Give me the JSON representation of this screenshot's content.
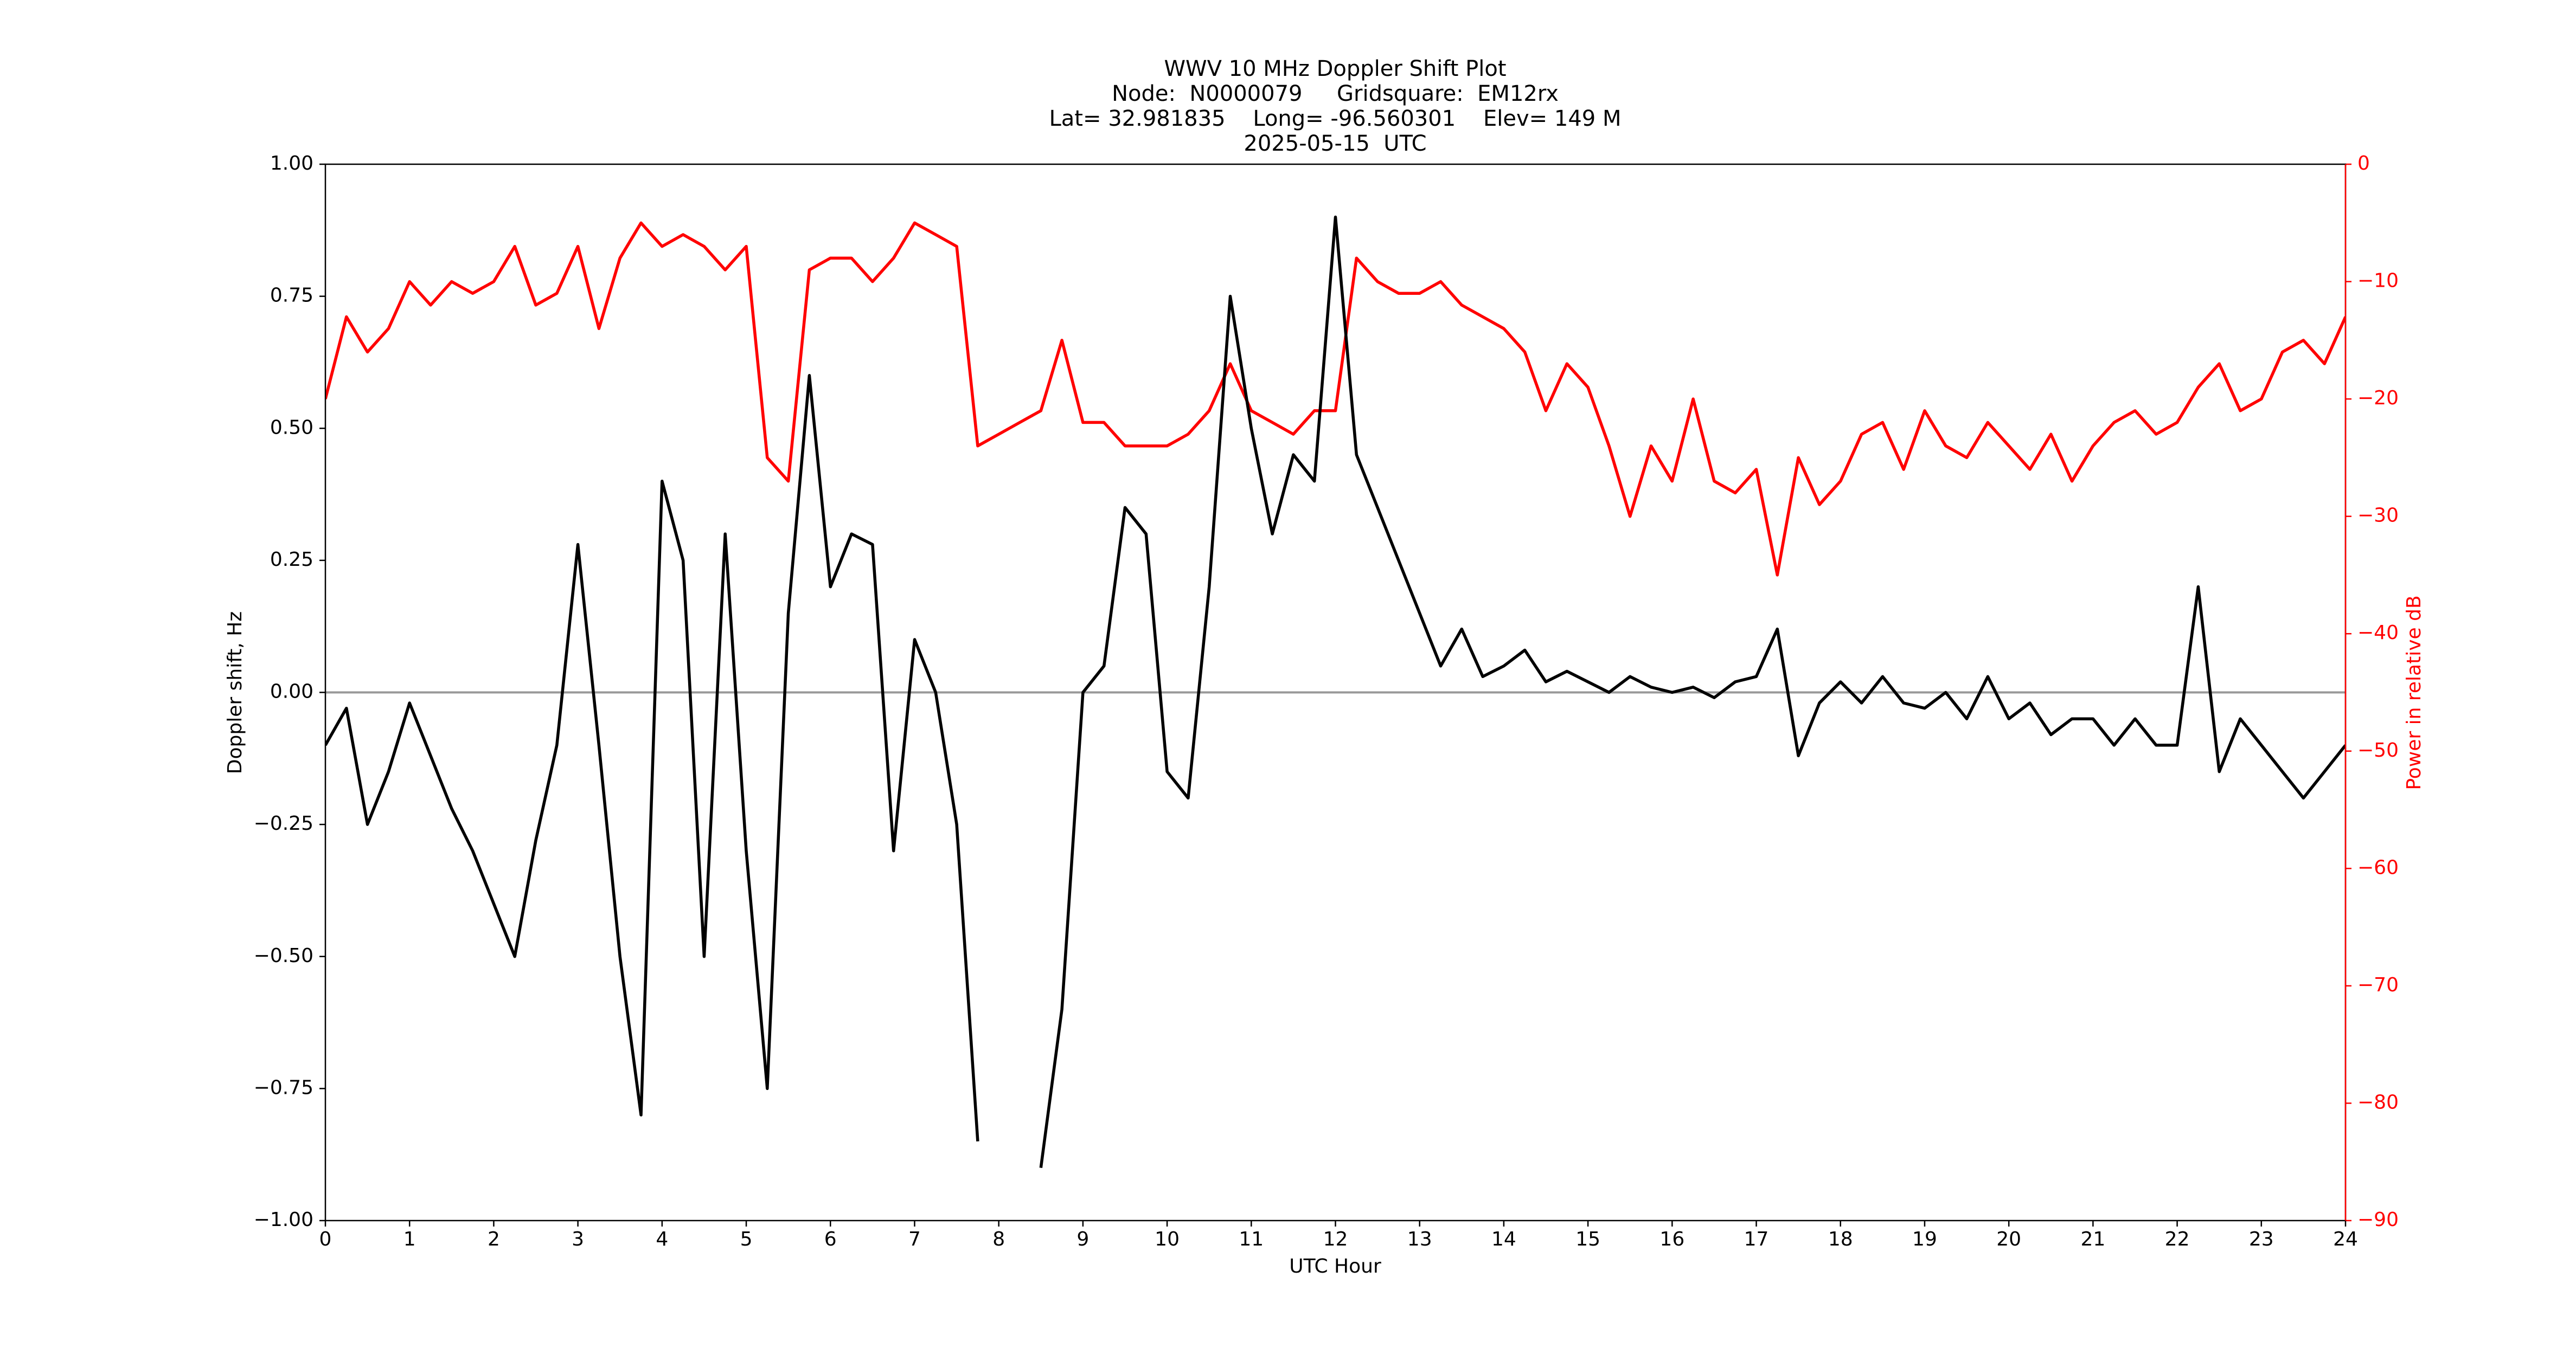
{
  "chart_data": {
    "type": "line",
    "title": [
      "WWV 10 MHz Doppler Shift Plot",
      "Node:  N0000079     Gridsquare:  EM12rx",
      "Lat= 32.981835    Long= -96.560301    Elev= 149 M",
      "2025-05-15  UTC"
    ],
    "xlabel": "UTC Hour",
    "ylabel": "Doppler shift, Hz",
    "y2label": "Power in relative dB",
    "x": [
      0,
      0.25,
      0.5,
      0.75,
      1,
      1.25,
      1.5,
      1.75,
      2,
      2.25,
      2.5,
      2.75,
      3,
      3.25,
      3.5,
      3.75,
      4,
      4.25,
      4.5,
      4.75,
      5,
      5.25,
      5.5,
      5.75,
      6,
      6.25,
      6.5,
      6.75,
      7,
      7.25,
      7.5,
      7.75,
      8,
      8.25,
      8.5,
      8.75,
      9,
      9.25,
      9.5,
      9.75,
      10,
      10.25,
      10.5,
      10.75,
      11,
      11.25,
      11.5,
      11.75,
      12,
      12.25,
      12.5,
      12.75,
      13,
      13.25,
      13.5,
      13.75,
      14,
      14.25,
      14.5,
      14.75,
      15,
      15.25,
      15.5,
      15.75,
      16,
      16.25,
      16.5,
      16.75,
      17,
      17.25,
      17.5,
      17.75,
      18,
      18.25,
      18.5,
      18.75,
      19,
      19.25,
      19.5,
      19.75,
      20,
      20.25,
      20.5,
      20.75,
      21,
      21.25,
      21.5,
      21.75,
      22,
      22.25,
      22.5,
      22.75,
      23,
      23.25,
      23.5,
      23.75,
      24
    ],
    "series": [
      {
        "color": "#000000",
        "values": [
          -0.1,
          -0.03,
          -0.25,
          -0.15,
          -0.02,
          -0.12,
          -0.22,
          -0.3,
          -0.4,
          -0.5,
          -0.28,
          -0.1,
          0.28,
          -0.1,
          -0.5,
          -0.8,
          0.4,
          0.25,
          -0.5,
          0.3,
          -0.3,
          -0.75,
          0.15,
          0.6,
          0.2,
          0.3,
          0.28,
          -0.3,
          0.1,
          0.0,
          -0.25,
          -0.85,
          null,
          null,
          -0.9,
          -0.6,
          0.0,
          0.05,
          0.35,
          0.3,
          -0.15,
          -0.2,
          0.2,
          0.75,
          0.5,
          0.3,
          0.45,
          0.4,
          0.9,
          0.45,
          0.35,
          0.25,
          0.15,
          0.05,
          0.12,
          0.03,
          0.05,
          0.08,
          0.02,
          0.04,
          0.02,
          0.0,
          0.03,
          0.01,
          0.0,
          0.01,
          -0.01,
          0.02,
          0.03,
          0.12,
          -0.12,
          -0.02,
          0.02,
          -0.02,
          0.03,
          -0.02,
          -0.03,
          0.0,
          -0.05,
          0.03,
          -0.05,
          -0.02,
          -0.08,
          -0.05,
          -0.05,
          -0.1,
          -0.05,
          -0.1,
          -0.1,
          0.2,
          -0.15,
          -0.05,
          -0.1,
          -0.15,
          -0.2,
          -0.15,
          -0.1
        ]
      },
      {
        "color": "#ff0000",
        "axis": "y2",
        "values": [
          -20,
          -13,
          -16,
          -14,
          -10,
          -12,
          -10,
          -11,
          -10,
          -7,
          -12,
          -11,
          -7,
          -14,
          -8,
          -5,
          -7,
          -6,
          -7,
          -9,
          -7,
          -25,
          -27,
          -9,
          -8,
          -8,
          -10,
          -8,
          -5,
          -6,
          -7,
          -24,
          -23,
          -22,
          -21,
          -15,
          -22,
          -22,
          -24,
          -24,
          -24,
          -23,
          -21,
          -17,
          -21,
          -22,
          -23,
          -21,
          -21,
          -8,
          -10,
          -11,
          -11,
          -10,
          -12,
          -13,
          -14,
          -16,
          -21,
          -17,
          -19,
          -24,
          -30,
          -24,
          -27,
          -20,
          -27,
          -28,
          -26,
          -35,
          -25,
          -29,
          -27,
          -23,
          -22,
          -26,
          -21,
          -24,
          -25,
          -22,
          -24,
          -26,
          -23,
          -27,
          -24,
          -22,
          -21,
          -23,
          -22,
          -19,
          -17,
          -21,
          -20,
          -16,
          -15,
          -17,
          -13
        ]
      }
    ],
    "reference_line": 0,
    "reference_color": "#999999",
    "xlim": [
      0,
      24
    ],
    "xticks": [
      0,
      1,
      2,
      3,
      4,
      5,
      6,
      7,
      8,
      9,
      10,
      11,
      12,
      13,
      14,
      15,
      16,
      17,
      18,
      19,
      20,
      21,
      22,
      23,
      24
    ],
    "ylim": [
      -1,
      1
    ],
    "yticks": [
      {
        "value": -1,
        "label": "−1.00"
      },
      {
        "value": -0.75,
        "label": "−0.75"
      },
      {
        "value": -0.5,
        "label": "−0.50"
      },
      {
        "value": -0.25,
        "label": "−0.25"
      },
      {
        "value": 0,
        "label": "0.00"
      },
      {
        "value": 0.25,
        "label": "0.25"
      },
      {
        "value": 0.5,
        "label": "0.50"
      },
      {
        "value": 0.75,
        "label": "0.75"
      },
      {
        "value": 1,
        "label": "1.00"
      }
    ],
    "y2lim": [
      -90,
      0
    ],
    "y2ticks": [
      {
        "value": -90,
        "label": "−90"
      },
      {
        "value": -80,
        "label": "−80"
      },
      {
        "value": -70,
        "label": "−70"
      },
      {
        "value": -60,
        "label": "−60"
      },
      {
        "value": -50,
        "label": "−50"
      },
      {
        "value": -40,
        "label": "−40"
      },
      {
        "value": -30,
        "label": "−30"
      },
      {
        "value": -20,
        "label": "−20"
      },
      {
        "value": -10,
        "label": "−10"
      },
      0
    ],
    "y2color": "#ff0000"
  }
}
